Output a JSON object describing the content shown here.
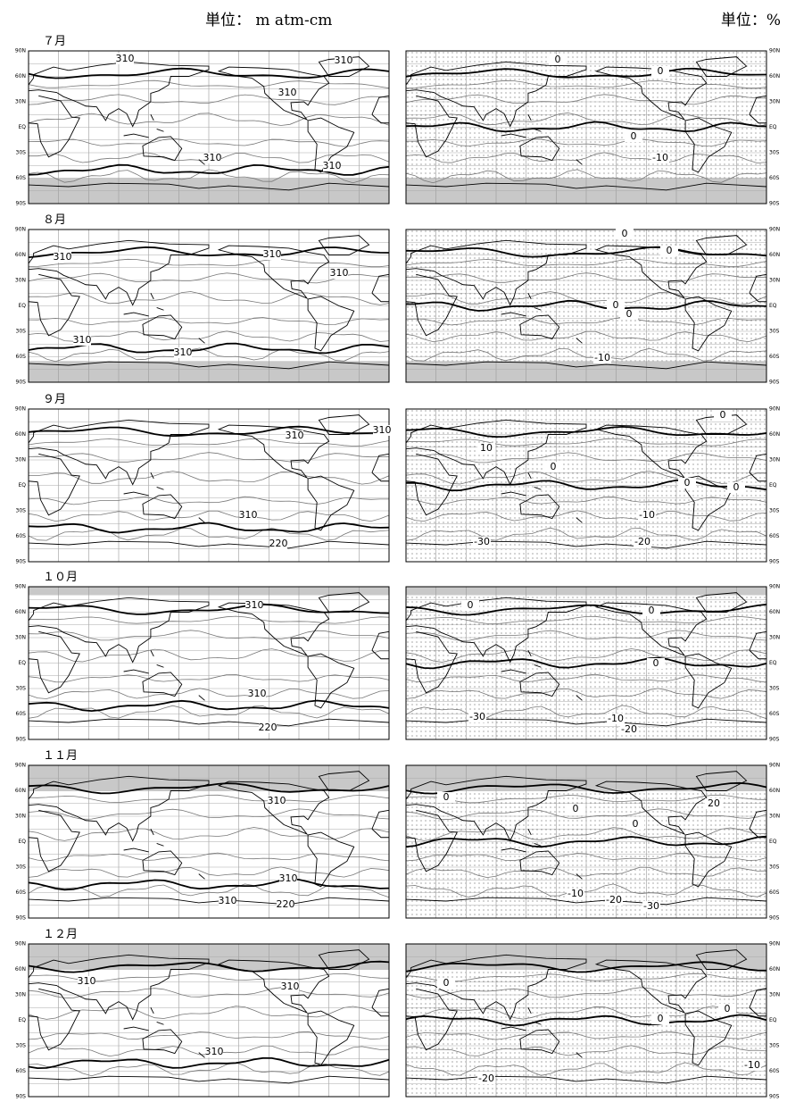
{
  "header": {
    "left_unit": "単位： m atm-cm",
    "right_unit": "単位：%"
  },
  "latitude_labels": [
    "90N",
    "60N",
    "30N",
    "EQ",
    "30S",
    "60S",
    "90S"
  ],
  "rows": [
    {
      "month": "７月",
      "left_labels": [
        "310",
        "310",
        "310",
        "310",
        "310"
      ],
      "right_labels": [
        "0",
        "0",
        "0",
        "-10"
      ]
    },
    {
      "month": "８月",
      "left_labels": [
        "310",
        "310",
        "310",
        "310",
        "310"
      ],
      "right_labels": [
        "0",
        "0",
        "0",
        "0",
        "-10"
      ]
    },
    {
      "month": "９月",
      "left_labels": [
        "310",
        "310",
        "310",
        "220"
      ],
      "right_labels": [
        "0",
        "10",
        "0",
        "0",
        "0",
        "-10",
        "-30",
        "-20"
      ]
    },
    {
      "month": "１０月",
      "left_labels": [
        "310",
        "310",
        "220"
      ],
      "right_labels": [
        "0",
        "0",
        "0",
        "-30",
        "-10",
        "-20"
      ]
    },
    {
      "month": "１１月",
      "left_labels": [
        "310",
        "310",
        "310",
        "220"
      ],
      "right_labels": [
        "0",
        "0",
        "20",
        "0",
        "-10",
        "-20",
        "-30"
      ]
    },
    {
      "month": "１２月",
      "left_labels": [
        "310",
        "310",
        "310"
      ],
      "right_labels": [
        "0",
        "0",
        "0",
        "-10",
        "-20"
      ]
    }
  ]
}
